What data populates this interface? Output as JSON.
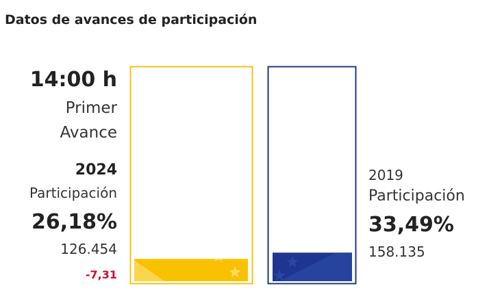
{
  "title": "Datos de avances de participación",
  "header": {
    "time": "14:00 h",
    "label_line1": "Primer",
    "label_line2": "Avance"
  },
  "current": {
    "year": "2024",
    "label": "Participación",
    "percent_text": "26,18%",
    "votes": "126.454",
    "difference": "-7,31"
  },
  "previous": {
    "year": "2019",
    "label": "Participación",
    "percent_text": "33,49%",
    "votes": "158.135"
  },
  "chart_data": {
    "type": "bar",
    "categories": [
      "2024",
      "2019"
    ],
    "values": [
      26.18,
      33.49
    ],
    "ylim": [
      0,
      100
    ],
    "colors": {
      "2024": {
        "border": "#f2c311",
        "fill": "#f9c200",
        "accent": "#fde58a"
      },
      "2019": {
        "border": "#1c3a7a",
        "fill": "#1e3591",
        "accent": "#2e4fa8"
      }
    }
  }
}
